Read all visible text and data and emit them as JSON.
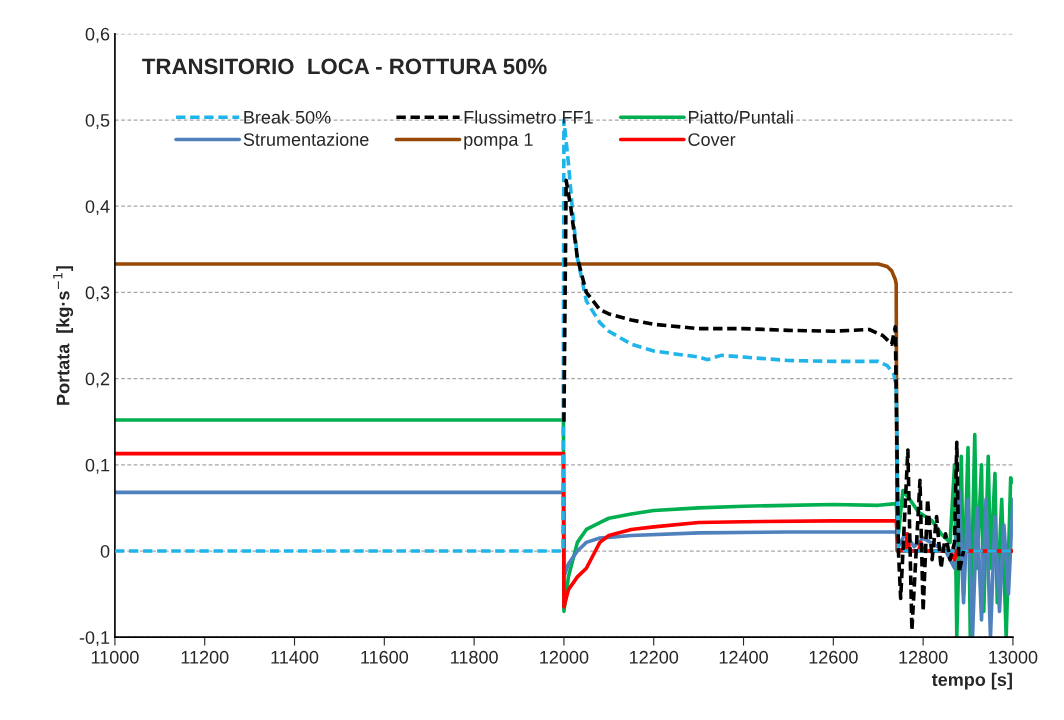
{
  "chart_data": {
    "type": "line",
    "title": "TRANSITORIO  LOCA - ROTTURA 50%",
    "xlabel": "tempo [s]",
    "ylabel": "Portata  [kg·s$^{−1}$]",
    "xlim": [
      11000,
      13000
    ],
    "xticks": [
      11000,
      11200,
      11400,
      11600,
      11800,
      12000,
      12200,
      12400,
      12600,
      12800,
      13000
    ],
    "ylim": [
      -0.1,
      0.6
    ],
    "yticks": [
      {
        "value": -0.1,
        "label": "-0,1"
      },
      {
        "value": 0,
        "label": "0"
      },
      {
        "value": 0.1,
        "label": "0,1"
      },
      {
        "value": 0.2,
        "label": "0,2"
      },
      {
        "value": 0.3,
        "label": "0,3"
      },
      {
        "value": 0.4,
        "label": "0,4"
      },
      {
        "value": 0.5,
        "label": "0,5"
      },
      {
        "value": 0.6,
        "label": "0,6"
      }
    ],
    "grid": "y",
    "legend": "top left",
    "marker": "none",
    "series": [
      {
        "name": "Break 50%",
        "color": "#1fb4ea",
        "line_style": "dashed",
        "x": [
          11000,
          11998,
          12000,
          12010,
          12020,
          12030,
          12050,
          12080,
          12100,
          12150,
          12200,
          12300,
          12320,
          12350,
          12400,
          12500,
          12600,
          12700,
          12720,
          12735,
          12740,
          12745,
          13000
        ],
        "values": [
          0,
          0,
          0.5,
          0.45,
          0.39,
          0.34,
          0.29,
          0.265,
          0.255,
          0.24,
          0.232,
          0.225,
          0.222,
          0.227,
          0.225,
          0.221,
          0.22,
          0.22,
          0.215,
          0.205,
          0.19,
          0,
          0
        ]
      },
      {
        "name": "Flussimetro FF1",
        "color": "#000000",
        "line_style": "dashed",
        "x": [
          12000,
          12005,
          12015,
          12030,
          12050,
          12080,
          12100,
          12150,
          12200,
          12300,
          12400,
          12500,
          12600,
          12680,
          12710,
          12730,
          12738,
          12745,
          12750,
          12766,
          12775,
          12793,
          12800,
          12810,
          12820,
          12830,
          12840,
          12850,
          12860,
          12870,
          12875,
          12880,
          12890
        ],
        "values": [
          0.15,
          0.43,
          0.4,
          0.34,
          0.3,
          0.28,
          0.275,
          0.268,
          0.263,
          0.258,
          0.258,
          0.256,
          0.255,
          0.257,
          0.25,
          0.24,
          0.26,
          0,
          -0.055,
          0.117,
          -0.092,
          0.082,
          -0.07,
          0.06,
          -0.01,
          0.04,
          -0.02,
          0.02,
          -0.01,
          0.01,
          0.126,
          -0.025,
          0
        ]
      },
      {
        "name": "Piatto/Puntali",
        "color": "#00b050",
        "line_style": "solid",
        "x": [
          11000,
          11999,
          12000,
          12010,
          12030,
          12050,
          12080,
          12100,
          12150,
          12200,
          12300,
          12400,
          12500,
          12600,
          12700,
          12740,
          12745,
          12755,
          12770,
          12790,
          12820,
          12840,
          12860,
          12870,
          12875,
          12885,
          12890,
          12900,
          12905,
          12915,
          12920,
          12930,
          12935,
          12945,
          12950,
          12960,
          12965,
          12975,
          12985,
          12995,
          13000
        ],
        "values": [
          0.152,
          0.152,
          -0.07,
          -0.03,
          0.01,
          0.025,
          0.033,
          0.038,
          0.043,
          0.047,
          0.05,
          0.052,
          0.053,
          0.054,
          0.053,
          0.055,
          0.02,
          0.07,
          0.06,
          0.045,
          0.035,
          0.02,
          0.01,
          0.1,
          -0.1,
          0.11,
          -0.05,
          0.12,
          -0.1,
          0.135,
          -0.02,
          0.1,
          -0.07,
          0.11,
          -0.02,
          0.09,
          -0.06,
          0.06,
          -0.1,
          0.085,
          0.08
        ]
      },
      {
        "name": "Strumentazione",
        "color": "#4f81bd",
        "line_style": "solid",
        "x": [
          11000,
          11999,
          12000,
          12010,
          12030,
          12050,
          12080,
          12150,
          12300,
          12500,
          12740,
          12745,
          12760,
          12780,
          12800,
          12850,
          12870,
          12880,
          12890,
          12900,
          12910,
          12920,
          12930,
          12940,
          12950,
          12960,
          12970,
          12980,
          12990,
          13000
        ],
        "values": [
          0.068,
          0.068,
          -0.03,
          -0.015,
          0,
          0.01,
          0.015,
          0.018,
          0.021,
          0.022,
          0.022,
          0.005,
          0.02,
          0.005,
          0.015,
          0,
          -0.02,
          0.07,
          -0.06,
          0.06,
          -0.1,
          0.05,
          -0.08,
          0.06,
          -0.1,
          0.04,
          -0.07,
          0.03,
          -0.05,
          0.06
        ]
      },
      {
        "name": "pompa 1",
        "color": "#974706",
        "line_style": "solid",
        "x": [
          11000,
          12700,
          12720,
          12730,
          12738,
          12740,
          12742,
          13000
        ],
        "values": [
          0.333,
          0.333,
          0.33,
          0.325,
          0.315,
          0.31,
          0,
          0
        ]
      },
      {
        "name": "Cover",
        "color": "#ff0000",
        "line_style": "solid",
        "x": [
          11000,
          11999,
          12000,
          12010,
          12030,
          12050,
          12070,
          12080,
          12100,
          12150,
          12200,
          12300,
          12400,
          12600,
          12740,
          12745,
          12760,
          12765,
          12770,
          12790,
          12795,
          12800,
          12860,
          12870,
          12875,
          13000
        ],
        "values": [
          0.113,
          0.113,
          -0.065,
          -0.045,
          -0.03,
          -0.02,
          0,
          0.01,
          0.018,
          0.025,
          0.028,
          0.033,
          0.034,
          0.035,
          0.035,
          0.002,
          0,
          0.02,
          0,
          0,
          0.01,
          0,
          0,
          -0.01,
          0,
          0
        ]
      }
    ]
  }
}
